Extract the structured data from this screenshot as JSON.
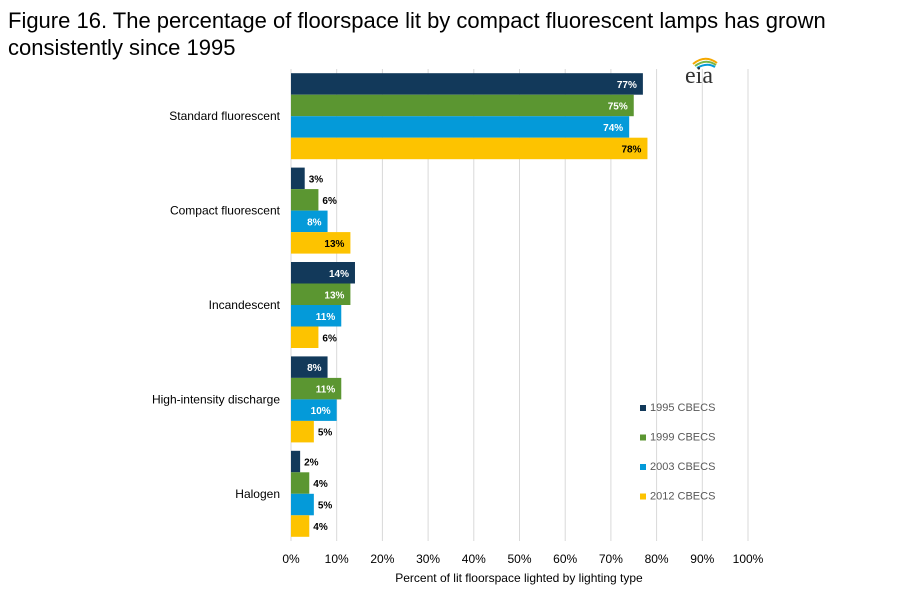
{
  "figure": {
    "title": "Figure 16. The percentage of floorspace lit by compact fluorescent lamps has grown consistently since 1995",
    "logo_text": "eia"
  },
  "chart_data": {
    "type": "bar",
    "orientation": "horizontal",
    "categories": [
      "Standard fluorescent",
      "Compact fluorescent",
      "Incandescent",
      "High-intensity discharge",
      "Halogen"
    ],
    "series": [
      {
        "name": "1995 CBECS",
        "color": "#12395A",
        "values": [
          77,
          3,
          14,
          8,
          2
        ],
        "labels": [
          "77%",
          "3%",
          "14%",
          "8%",
          "2%"
        ]
      },
      {
        "name": "1999 CBECS",
        "color": "#5B9631",
        "values": [
          75,
          6,
          13,
          11,
          4
        ],
        "labels": [
          "75%",
          "6%",
          "13%",
          "11%",
          "4%"
        ]
      },
      {
        "name": "2003 CBECS",
        "color": "#049AD9",
        "values": [
          74,
          8,
          11,
          10,
          5
        ],
        "labels": [
          "74%",
          "8%",
          "11%",
          "10%",
          "5%"
        ]
      },
      {
        "name": "2012 CBECS",
        "color": "#FDC300",
        "values": [
          78,
          13,
          6,
          5,
          4
        ],
        "labels": [
          "78%",
          "13%",
          "6%",
          "5%",
          "4%"
        ]
      }
    ],
    "xlabel": "Percent of lit floorspace lighted by lighting type",
    "xlim": [
      0,
      100
    ],
    "x_ticks": [
      "0%",
      "10%",
      "20%",
      "30%",
      "40%",
      "50%",
      "60%",
      "70%",
      "80%",
      "90%",
      "100%"
    ],
    "grid": "vertical",
    "legend_position": "bottom-right"
  }
}
